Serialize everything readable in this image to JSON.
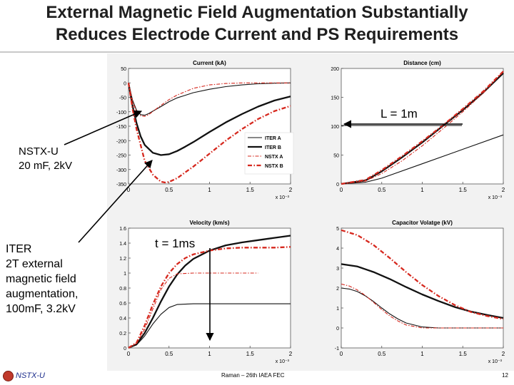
{
  "slide": {
    "title_line1": "External Magnetic Field Augmentation Substantially",
    "title_line2": "Reduces Electrode Current and PS Requirements",
    "annotation_nstx": [
      "NSTX-U",
      "20 mF, 2kV"
    ],
    "annotation_iter": [
      "ITER",
      "2T external",
      "magnetic field",
      "augmentation,",
      "100mF, 3.2kV"
    ],
    "annotation_L": "L = 1m",
    "annotation_t": "t = 1ms",
    "footer_left": "NSTX-U",
    "footer_center": "Raman – 26th IAEA FEC",
    "page_number": "12"
  },
  "colors": {
    "iter": "#111111",
    "nstx": "#d6281e"
  },
  "chart_data": [
    {
      "id": "current",
      "type": "line",
      "title": "Current (kA)",
      "xlabel": "",
      "ylabel": "",
      "x_exponent": "x 10⁻³",
      "xlim": [
        0,
        2
      ],
      "ylim": [
        -350,
        50
      ],
      "xticks": [
        "0",
        "0.5",
        "1",
        "1.5",
        "2"
      ],
      "yticks": [
        "50",
        "0",
        "-50",
        "-100",
        "-150",
        "-200",
        "-250",
        "-300",
        "-350"
      ],
      "legend": [
        "ITER A",
        "ITER B",
        "NSTX A",
        "NSTX B"
      ],
      "legend_position": "center-right",
      "series": [
        {
          "name": "ITER A",
          "style": "solid-thin",
          "color": "#111111",
          "x": [
            0,
            0.05,
            0.1,
            0.15,
            0.2,
            0.25,
            0.3,
            0.4,
            0.5,
            0.6,
            0.8,
            1.0,
            1.2,
            1.4,
            1.6,
            1.8,
            2.0
          ],
          "y": [
            0,
            -60,
            -95,
            -110,
            -112,
            -106,
            -98,
            -82,
            -65,
            -52,
            -34,
            -22,
            -13,
            -7,
            -3,
            -1,
            0
          ]
        },
        {
          "name": "ITER B",
          "style": "solid-thick",
          "color": "#111111",
          "x": [
            0,
            0.05,
            0.1,
            0.15,
            0.2,
            0.3,
            0.4,
            0.5,
            0.6,
            0.7,
            0.8,
            1.0,
            1.2,
            1.4,
            1.6,
            1.8,
            2.0
          ],
          "y": [
            0,
            -80,
            -140,
            -185,
            -215,
            -242,
            -250,
            -247,
            -236,
            -221,
            -205,
            -170,
            -137,
            -108,
            -82,
            -61,
            -47
          ]
        },
        {
          "name": "NSTX A",
          "style": "dashdot-thin",
          "color": "#d6281e",
          "x": [
            0,
            0.05,
            0.1,
            0.15,
            0.2,
            0.25,
            0.3,
            0.4,
            0.5,
            0.6,
            0.8,
            1.0,
            1.2,
            1.4,
            1.6,
            1.8,
            2.0
          ],
          "y": [
            0,
            -65,
            -100,
            -114,
            -116,
            -110,
            -99,
            -78,
            -58,
            -42,
            -19,
            -7,
            -2,
            0,
            0,
            0,
            0
          ]
        },
        {
          "name": "NSTX B",
          "style": "dashdot-thick",
          "color": "#d6281e",
          "x": [
            0,
            0.05,
            0.1,
            0.2,
            0.3,
            0.4,
            0.45,
            0.5,
            0.6,
            0.7,
            0.8,
            1.0,
            1.2,
            1.4,
            1.6,
            1.8,
            2.0
          ],
          "y": [
            0,
            -90,
            -160,
            -270,
            -318,
            -342,
            -345,
            -343,
            -330,
            -310,
            -290,
            -245,
            -200,
            -160,
            -125,
            -98,
            -80
          ]
        }
      ]
    },
    {
      "id": "distance",
      "type": "line",
      "title": "Distance (cm)",
      "xlabel": "",
      "ylabel": "",
      "x_exponent": "x 10⁻³",
      "xlim": [
        0,
        2
      ],
      "ylim": [
        0,
        200
      ],
      "xticks": [
        "0",
        "0.5",
        "1",
        "1.5",
        "2"
      ],
      "yticks": [
        "200",
        "150",
        "100",
        "50",
        "0"
      ],
      "reference_y": 100,
      "series": [
        {
          "name": "ITER A",
          "style": "solid-thin",
          "color": "#111111",
          "x": [
            0,
            0.3,
            0.5,
            1.0,
            1.5,
            2.0
          ],
          "y": [
            0,
            3,
            10,
            35,
            60,
            85
          ]
        },
        {
          "name": "ITER B",
          "style": "solid-thick",
          "color": "#111111",
          "x": [
            0,
            0.3,
            0.5,
            0.75,
            1.0,
            1.25,
            1.5,
            1.75,
            2.0
          ],
          "y": [
            0,
            6,
            22,
            46,
            72,
            100,
            128,
            158,
            192
          ]
        },
        {
          "name": "NSTX A",
          "style": "dashdot-thin",
          "color": "#d6281e",
          "x": [
            0,
            0.3,
            0.5,
            0.75,
            1.0,
            1.25,
            1.5,
            1.75,
            2.0
          ],
          "y": [
            0,
            5,
            18,
            40,
            66,
            95,
            125,
            157,
            195
          ]
        },
        {
          "name": "NSTX B",
          "style": "dashdot-thick",
          "color": "#d6281e",
          "x": [
            0,
            0.3,
            0.5,
            0.75,
            1.0,
            1.25,
            1.5,
            1.75,
            2.0
          ],
          "y": [
            0,
            7,
            24,
            48,
            74,
            101,
            130,
            160,
            195
          ]
        }
      ]
    },
    {
      "id": "velocity",
      "type": "line",
      "title": "Velocity (km/s)",
      "xlabel": "",
      "ylabel": "",
      "x_exponent": "x 10⁻³",
      "xlim": [
        0,
        2
      ],
      "ylim": [
        0,
        1.6
      ],
      "xticks": [
        "0",
        "0.5",
        "1",
        "1.5",
        "2"
      ],
      "yticks": [
        "1.6",
        "1.4",
        "1.2",
        "1",
        "0.8",
        "0.6",
        "0.4",
        "0.2",
        "0"
      ],
      "series": [
        {
          "name": "ITER A",
          "style": "solid-thin",
          "color": "#111111",
          "x": [
            0,
            0.1,
            0.2,
            0.3,
            0.4,
            0.5,
            0.6,
            0.8,
            1.0,
            1.2,
            1.4,
            1.6,
            1.8,
            2.0
          ],
          "y": [
            0,
            0.04,
            0.16,
            0.32,
            0.45,
            0.54,
            0.58,
            0.59,
            0.59,
            0.59,
            0.59,
            0.59,
            0.59,
            0.59
          ]
        },
        {
          "name": "ITER B",
          "style": "solid-thick",
          "color": "#111111",
          "x": [
            0,
            0.1,
            0.2,
            0.3,
            0.4,
            0.5,
            0.6,
            0.7,
            0.8,
            1.0,
            1.2,
            1.4,
            1.6,
            1.8,
            2.0
          ],
          "y": [
            0,
            0.05,
            0.2,
            0.4,
            0.62,
            0.82,
            0.98,
            1.1,
            1.19,
            1.3,
            1.37,
            1.41,
            1.44,
            1.47,
            1.5
          ]
        },
        {
          "name": "NSTX A",
          "style": "dashdot-thin",
          "color": "#d6281e",
          "x": [
            0,
            0.1,
            0.2,
            0.3,
            0.4,
            0.5,
            0.6,
            0.8,
            1.0,
            1.2,
            1.4,
            1.6
          ],
          "y": [
            0,
            0.06,
            0.25,
            0.52,
            0.78,
            0.93,
            0.99,
            1.0,
            1.0,
            1.0,
            1.0,
            1.0
          ]
        },
        {
          "name": "NSTX B",
          "style": "dashdot-thick",
          "color": "#d6281e",
          "x": [
            0,
            0.1,
            0.2,
            0.3,
            0.4,
            0.5,
            0.6,
            0.7,
            0.8,
            1.0,
            1.2,
            1.4,
            1.6,
            1.8,
            2.0
          ],
          "y": [
            0,
            0.07,
            0.3,
            0.58,
            0.82,
            1.0,
            1.12,
            1.2,
            1.25,
            1.3,
            1.33,
            1.34,
            1.34,
            1.34,
            1.35
          ]
        }
      ]
    },
    {
      "id": "capacitor",
      "type": "line",
      "title": "Capacitor Volatge (kV)",
      "xlabel": "",
      "ylabel": "",
      "x_exponent": "x 10⁻³",
      "xlim": [
        0,
        2
      ],
      "ylim": [
        -1,
        5
      ],
      "xticks": [
        "0",
        "0.5",
        "1",
        "1.5",
        "2"
      ],
      "yticks": [
        "5",
        "4",
        "3",
        "2",
        "1",
        "0",
        "-1"
      ],
      "series": [
        {
          "name": "ITER A",
          "style": "solid-thin",
          "color": "#111111",
          "x": [
            0,
            0.1,
            0.2,
            0.3,
            0.4,
            0.5,
            0.6,
            0.7,
            0.8,
            1.0,
            1.2,
            1.4,
            1.6,
            1.8,
            2.0
          ],
          "y": [
            2.0,
            1.95,
            1.82,
            1.6,
            1.32,
            1.0,
            0.7,
            0.45,
            0.25,
            0.05,
            0.0,
            0.0,
            0.0,
            0.0,
            0.0
          ]
        },
        {
          "name": "ITER B",
          "style": "solid-thick",
          "color": "#111111",
          "x": [
            0,
            0.2,
            0.4,
            0.6,
            0.8,
            1.0,
            1.2,
            1.4,
            1.6,
            1.8,
            2.0
          ],
          "y": [
            3.2,
            3.08,
            2.8,
            2.45,
            2.05,
            1.68,
            1.35,
            1.05,
            0.82,
            0.65,
            0.5
          ]
        },
        {
          "name": "NSTX A",
          "style": "dashdot-thin",
          "color": "#d6281e",
          "x": [
            0,
            0.1,
            0.2,
            0.3,
            0.4,
            0.5,
            0.6,
            0.7,
            0.8,
            1.0,
            1.2,
            1.4,
            1.6,
            1.8,
            2.0
          ],
          "y": [
            2.2,
            2.1,
            1.9,
            1.62,
            1.28,
            0.92,
            0.6,
            0.35,
            0.15,
            0.0,
            0.0,
            0.0,
            0.0,
            0.0,
            0.0
          ]
        },
        {
          "name": "NSTX B",
          "style": "dashdot-thick",
          "color": "#d6281e",
          "x": [
            0,
            0.2,
            0.4,
            0.6,
            0.8,
            1.0,
            1.2,
            1.4,
            1.6,
            1.8,
            2.0
          ],
          "y": [
            4.9,
            4.65,
            4.15,
            3.5,
            2.8,
            2.15,
            1.6,
            1.15,
            0.8,
            0.6,
            0.45
          ]
        }
      ]
    }
  ]
}
